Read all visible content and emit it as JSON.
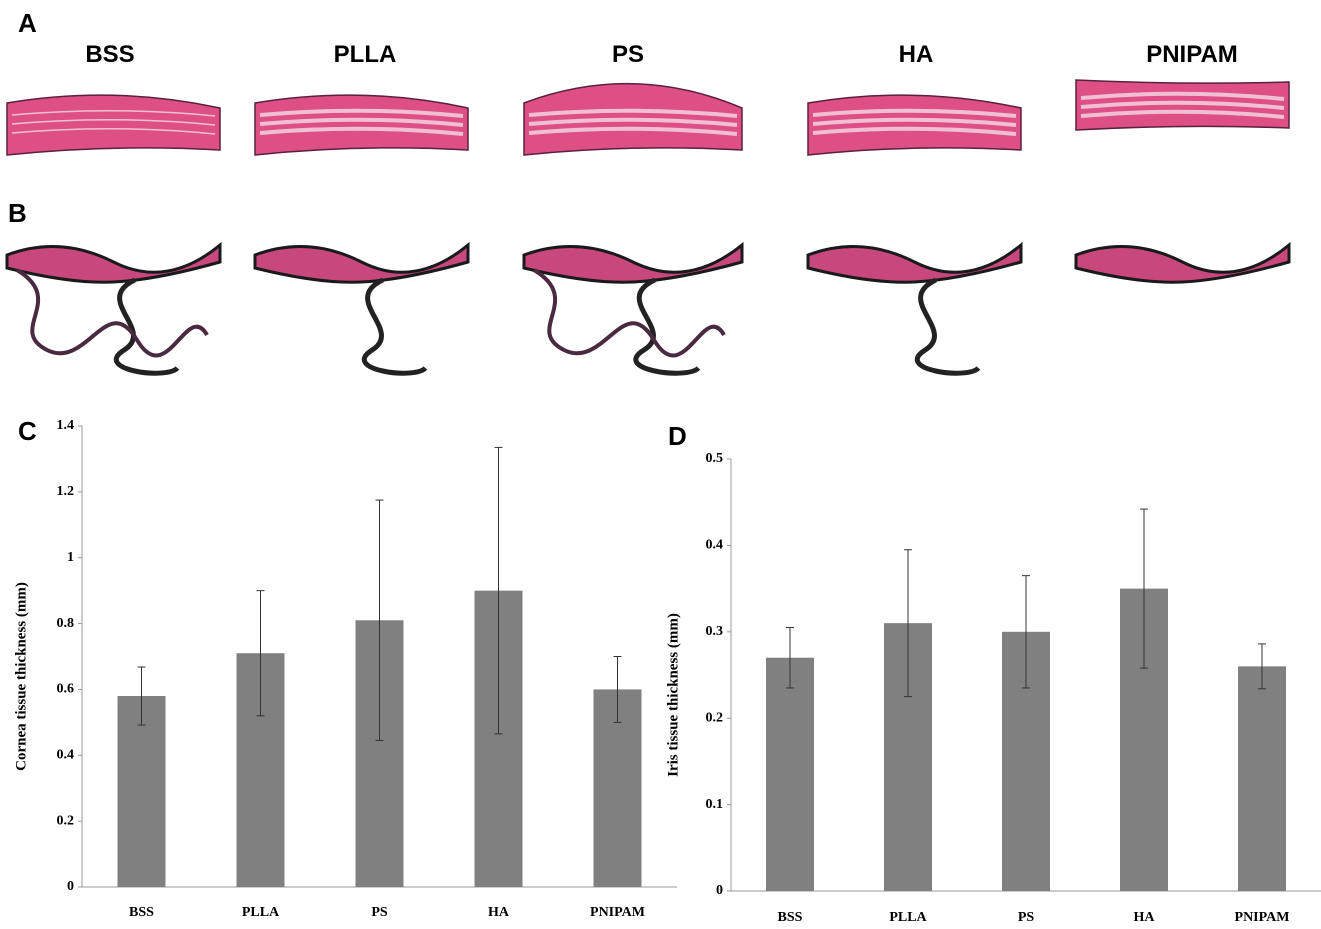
{
  "panel_labels": [
    "A",
    "B",
    "C",
    "D"
  ],
  "histology_labels": [
    "BSS",
    "PLLA",
    "PS",
    "HA",
    "PNIPAM"
  ],
  "chart_data": [
    {
      "type": "bar",
      "y_label": "Cornea tissue thickness (mm)",
      "categories": [
        "BSS",
        "PLLA",
        "PS",
        "HA",
        "PNIPAM"
      ],
      "values": [
        0.58,
        0.71,
        0.81,
        0.9,
        0.6
      ],
      "errors": [
        0.088,
        0.19,
        0.365,
        0.435,
        0.1
      ],
      "color": "#808080",
      "ylim": [
        0,
        1.4
      ],
      "yticks": [
        0,
        0.2,
        0.4,
        0.6,
        0.8,
        1,
        1.2,
        1.4
      ]
    },
    {
      "type": "bar",
      "y_label": "Iris tissue thickness (mm)",
      "categories": [
        "BSS",
        "PLLA",
        "PS",
        "HA",
        "PNIPAM"
      ],
      "values": [
        0.27,
        0.31,
        0.3,
        0.35,
        0.26
      ],
      "errors": [
        0.035,
        0.085,
        0.065,
        0.092,
        0.026
      ],
      "color": "#808080",
      "ylim": [
        0,
        0.5
      ],
      "yticks": [
        0,
        0.1,
        0.2,
        0.3,
        0.4,
        0.5
      ]
    }
  ]
}
